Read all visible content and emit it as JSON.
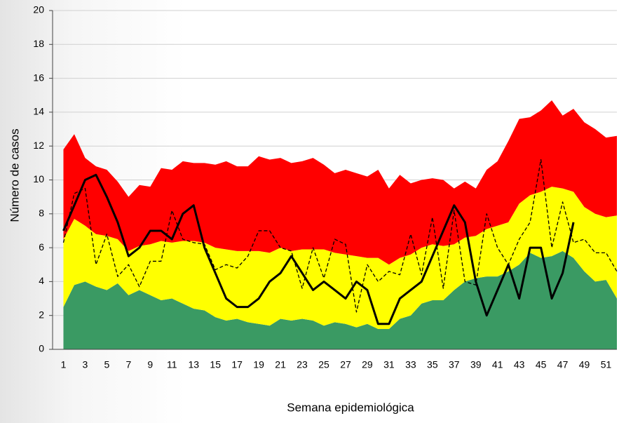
{
  "chart_data": {
    "type": "area",
    "xlabel": "Semana epidemiológica",
    "ylabel": "Número de casos",
    "x": [
      1,
      2,
      3,
      4,
      5,
      6,
      7,
      8,
      9,
      10,
      11,
      12,
      13,
      14,
      15,
      16,
      17,
      18,
      19,
      20,
      21,
      22,
      23,
      24,
      25,
      26,
      27,
      28,
      29,
      30,
      31,
      32,
      33,
      34,
      35,
      36,
      37,
      38,
      39,
      40,
      41,
      42,
      43,
      44,
      45,
      46,
      47,
      48,
      49,
      50,
      51,
      52
    ],
    "xlim": [
      0,
      52
    ],
    "xticks": [
      1,
      3,
      5,
      7,
      9,
      11,
      13,
      15,
      17,
      19,
      21,
      23,
      25,
      27,
      29,
      31,
      33,
      35,
      37,
      39,
      41,
      43,
      45,
      47,
      49,
      51
    ],
    "ylim": [
      0,
      20
    ],
    "yticks": [
      0,
      2,
      4,
      6,
      8,
      10,
      12,
      14,
      16,
      18,
      20
    ],
    "grid": true,
    "series": [
      {
        "type": "area",
        "color": "#3a9a63",
        "values": [
          2.5,
          3.8,
          4.0,
          3.7,
          3.5,
          3.9,
          3.2,
          3.5,
          3.2,
          2.9,
          3.0,
          2.7,
          2.4,
          2.3,
          1.9,
          1.7,
          1.8,
          1.6,
          1.5,
          1.4,
          1.8,
          1.7,
          1.8,
          1.7,
          1.4,
          1.6,
          1.5,
          1.3,
          1.5,
          1.2,
          1.2,
          1.8,
          2.0,
          2.7,
          2.9,
          2.9,
          3.5,
          4.0,
          4.2,
          4.3,
          4.3,
          4.6,
          5.0,
          5.7,
          5.4,
          5.5,
          5.8,
          5.4,
          4.6,
          4.0,
          4.1,
          3.0
        ]
      },
      {
        "type": "area",
        "color": "#ffff00",
        "values": [
          4.0,
          3.9,
          3.3,
          3.1,
          3.2,
          2.6,
          2.6,
          2.6,
          3.0,
          3.5,
          3.3,
          3.7,
          4.0,
          4.0,
          4.1,
          4.2,
          4.0,
          4.2,
          4.3,
          4.3,
          4.2,
          4.1,
          4.1,
          4.2,
          4.5,
          4.1,
          4.1,
          4.2,
          3.9,
          4.2,
          3.8,
          3.6,
          3.6,
          3.3,
          3.3,
          3.2,
          2.7,
          2.6,
          2.5,
          2.8,
          3.0,
          2.9,
          3.6,
          3.4,
          3.9,
          4.1,
          3.7,
          3.9,
          3.8,
          4.0,
          3.7,
          4.9
        ]
      },
      {
        "type": "area",
        "color": "#ff0000",
        "values": [
          5.3,
          5.0,
          4.0,
          4.0,
          3.9,
          3.4,
          3.2,
          3.6,
          3.4,
          4.3,
          4.3,
          4.7,
          4.6,
          4.7,
          4.9,
          5.2,
          5.0,
          5.0,
          5.6,
          5.5,
          5.3,
          5.2,
          5.2,
          5.4,
          5.0,
          4.7,
          5.0,
          4.9,
          4.8,
          5.2,
          4.5,
          4.9,
          4.2,
          4.0,
          3.9,
          3.9,
          3.3,
          3.3,
          2.8,
          3.5,
          3.8,
          4.8,
          5.0,
          4.6,
          4.8,
          5.1,
          4.3,
          4.9,
          5.0,
          5.0,
          4.7,
          4.7
        ]
      },
      {
        "type": "line",
        "color": "#000000",
        "dashed": true,
        "values": [
          6.3,
          9.2,
          9.5,
          5.0,
          6.8,
          4.3,
          5.0,
          3.7,
          5.2,
          5.2,
          8.2,
          6.5,
          6.3,
          6.2,
          4.7,
          5.0,
          4.8,
          5.5,
          7.0,
          7.0,
          6.0,
          5.8,
          3.6,
          6.0,
          4.2,
          6.5,
          6.2,
          2.2,
          5.0,
          4.0,
          4.6,
          4.4,
          6.8,
          4.4,
          7.8,
          3.6,
          8.2,
          4.0,
          3.8,
          8.0,
          6.0,
          5.0,
          6.5,
          7.5,
          11.2,
          6.0,
          8.7,
          6.3,
          6.5,
          5.7,
          5.7,
          4.6
        ]
      },
      {
        "type": "line",
        "color": "#000000",
        "dashed": false,
        "values": [
          7,
          8.5,
          10,
          10.3,
          9,
          7.5,
          5.5,
          6,
          7,
          7,
          6.5,
          8,
          8.5,
          6,
          4.5,
          3,
          2.5,
          2.5,
          3,
          4,
          4.5,
          5.5,
          4.5,
          3.5,
          4,
          3.5,
          3,
          4,
          3.5,
          1.5,
          1.5,
          3,
          3.5,
          4,
          5.5,
          7,
          8.5,
          7.5,
          4,
          2,
          3.5,
          5,
          3,
          6,
          6,
          3,
          4.5,
          7.5,
          null,
          null,
          null,
          null
        ]
      }
    ]
  }
}
